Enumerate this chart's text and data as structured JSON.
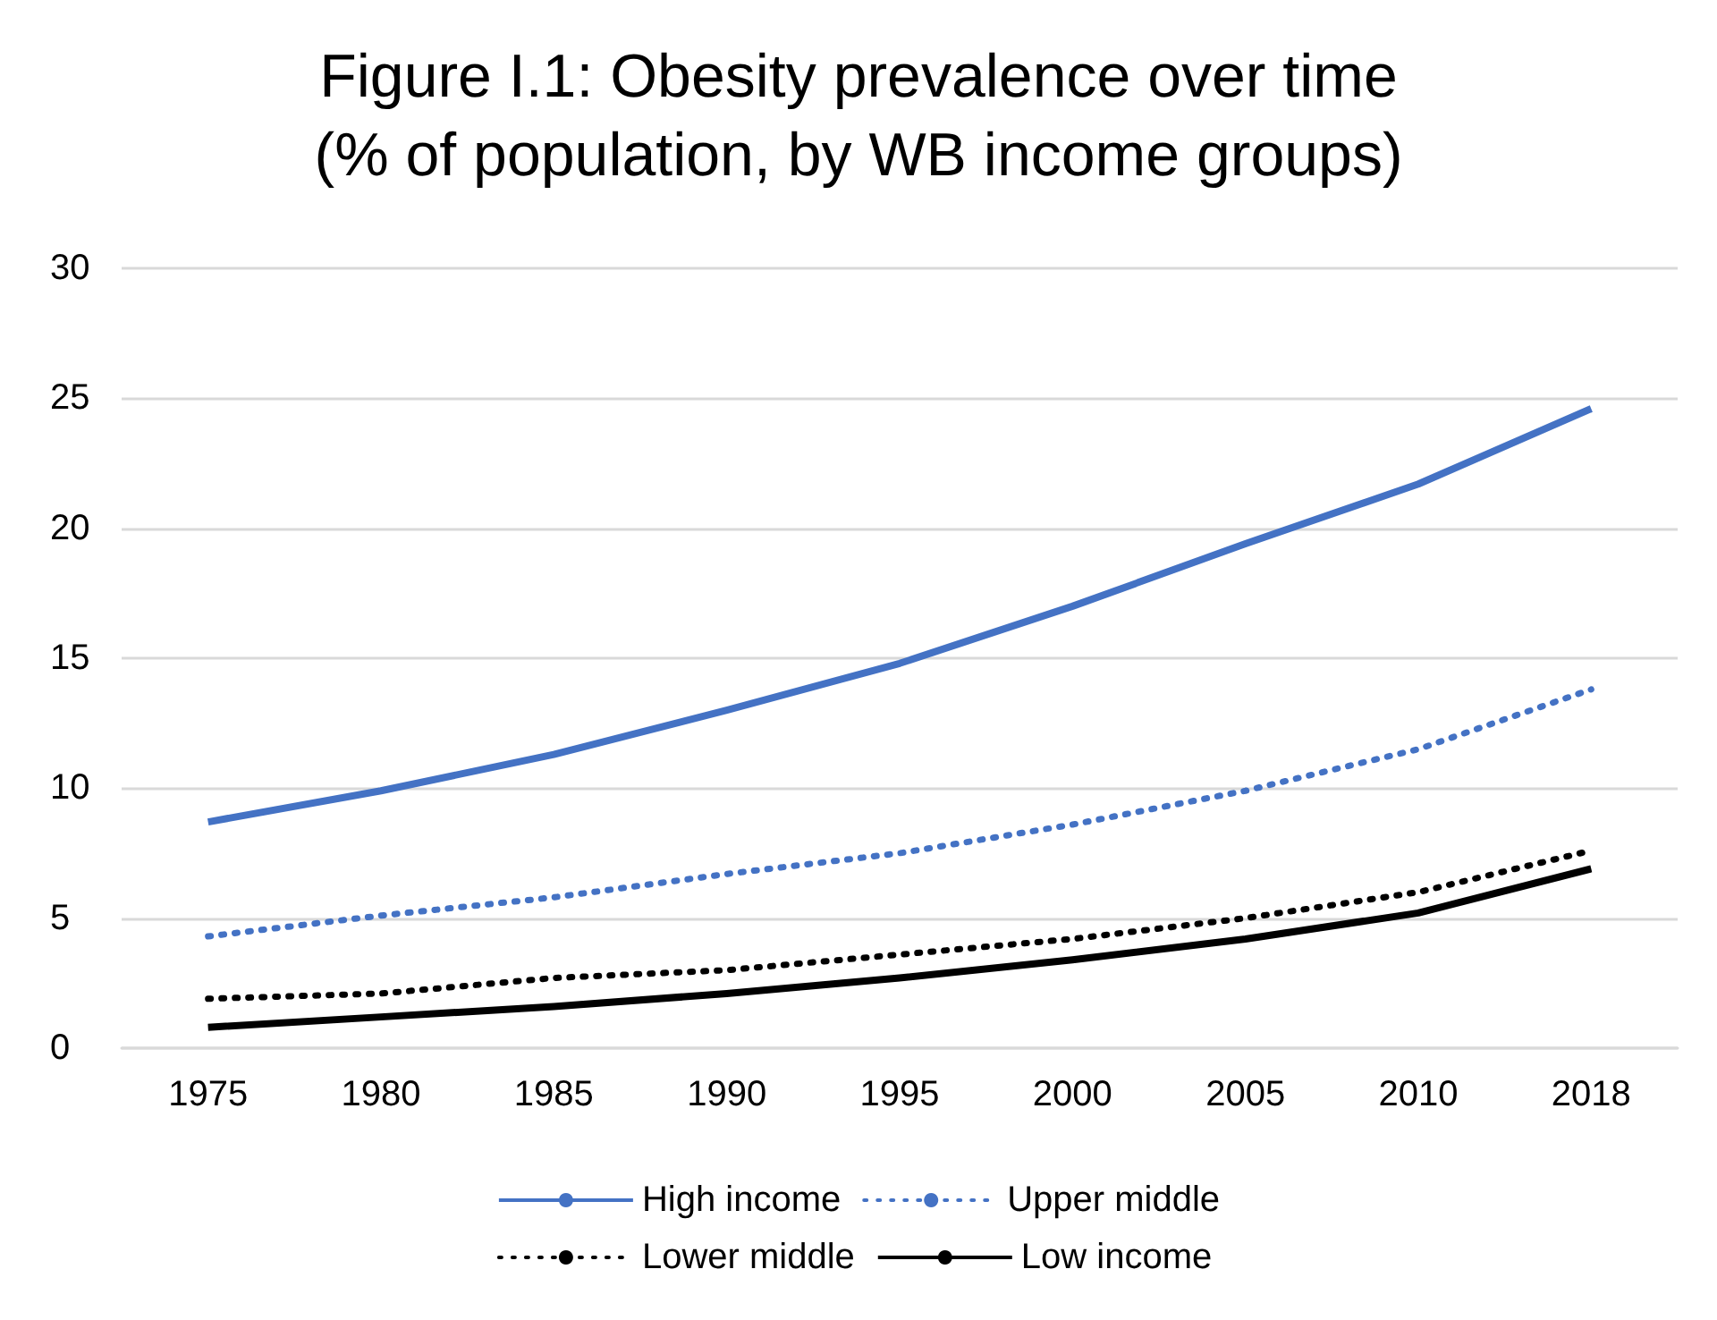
{
  "chart_data": {
    "type": "line",
    "title": "Figure I.1: Obesity prevalence over time\n(% of population, by WB income groups)",
    "categories": [
      "1975",
      "1980",
      "1985",
      "1990",
      "1995",
      "2000",
      "2005",
      "2010",
      "2018"
    ],
    "series": [
      {
        "name": "High income",
        "color": "#4472c4",
        "line_style": "solid",
        "values": [
          8.7,
          9.9,
          11.3,
          13.0,
          14.8,
          17.0,
          19.4,
          21.7,
          24.6
        ]
      },
      {
        "name": "Upper middle",
        "color": "#4472c4",
        "line_style": "dotted",
        "values": [
          4.3,
          5.1,
          5.8,
          6.7,
          7.5,
          8.6,
          9.9,
          11.5,
          13.8
        ]
      },
      {
        "name": "Lower middle",
        "color": "#000000",
        "line_style": "dotted",
        "values": [
          1.9,
          2.1,
          2.7,
          3.0,
          3.6,
          4.2,
          5.0,
          6.0,
          7.6
        ]
      },
      {
        "name": "Low income",
        "color": "#000000",
        "line_style": "solid",
        "values": [
          0.8,
          1.2,
          1.6,
          2.1,
          2.7,
          3.4,
          4.2,
          5.2,
          6.9
        ]
      }
    ],
    "ylim": [
      0,
      30
    ],
    "yticks": [
      0,
      5,
      10,
      15,
      20,
      25,
      30
    ],
    "grid": "y",
    "legend": "bottom",
    "marker": "none"
  }
}
